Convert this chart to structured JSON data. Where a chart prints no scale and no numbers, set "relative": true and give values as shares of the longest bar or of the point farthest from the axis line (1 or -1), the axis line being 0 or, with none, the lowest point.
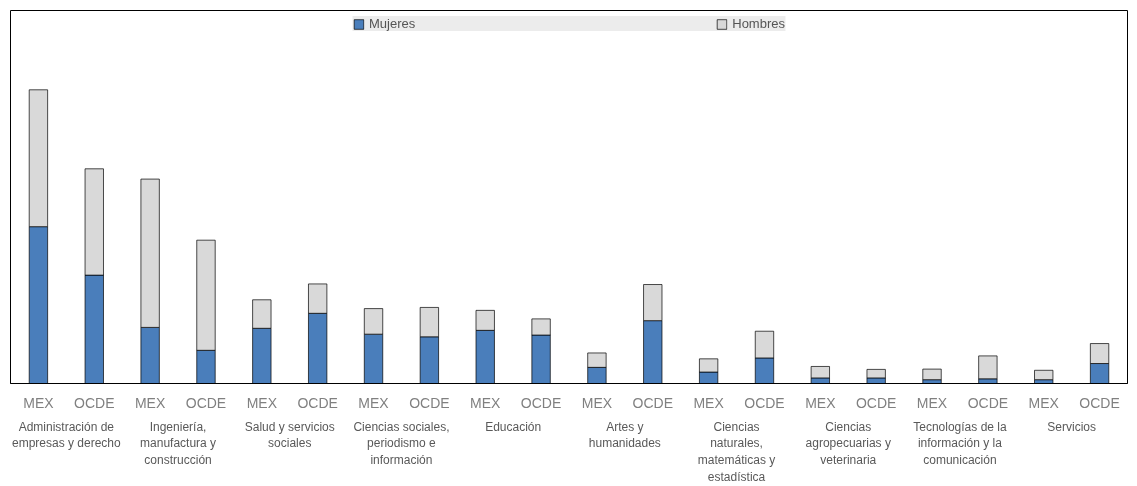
{
  "chart_data": {
    "type": "bar",
    "stacked": true,
    "relative": true,
    "legend": "top",
    "grid": false,
    "categories": [
      "MEX",
      "OCDE",
      "MEX",
      "OCDE",
      "MEX",
      "OCDE",
      "MEX",
      "OCDE",
      "MEX",
      "OCDE",
      "MEX",
      "OCDE",
      "MEX",
      "OCDE",
      "MEX",
      "OCDE",
      "MEX",
      "OCDE",
      "MEX",
      "OCDE"
    ],
    "series": [
      {
        "name": "Mujeres",
        "color": "#4a7ebb",
        "values": [
          0.534,
          0.369,
          0.191,
          0.113,
          0.188,
          0.239,
          0.168,
          0.159,
          0.181,
          0.165,
          0.055,
          0.214,
          0.039,
          0.087,
          0.019,
          0.019,
          0.013,
          0.016,
          0.013,
          0.068
        ]
      },
      {
        "name": "Hombres",
        "color": "#d9d9d9",
        "values": [
          0.466,
          0.362,
          0.505,
          0.375,
          0.097,
          0.1,
          0.087,
          0.1,
          0.068,
          0.055,
          0.049,
          0.123,
          0.045,
          0.091,
          0.039,
          0.029,
          0.036,
          0.078,
          0.032,
          0.068
        ]
      }
    ],
    "annotations": [
      "Administración de empresas y derecho",
      "Ingeniería, manufactura y construcción",
      "Salud y servicios sociales",
      "Ciencias sociales, periodismo e información",
      "Educación",
      "Artes y humanidades",
      "Ciencias naturales, matemáticas y estadística",
      "Ciencias agropecuarias y veterinaria",
      "Tecnologías de la información y la comunicación",
      "Servicios"
    ]
  }
}
